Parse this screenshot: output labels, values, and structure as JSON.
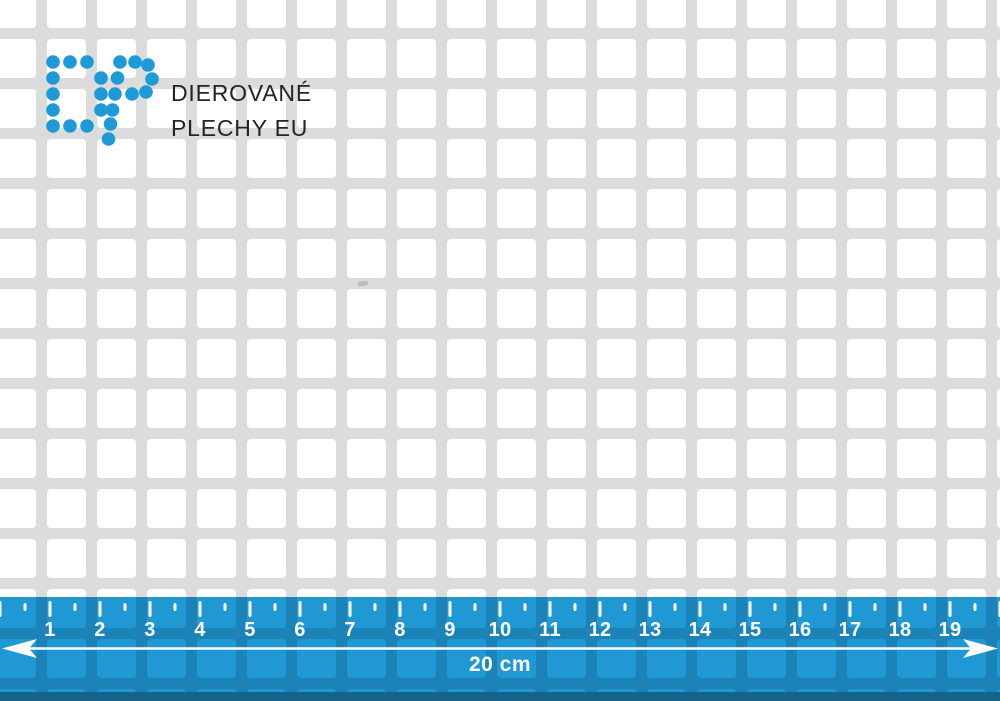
{
  "brand": {
    "logo_text": "DP",
    "name_line1": "DIEROVANÉ",
    "name_line2": "PLECHY EU"
  },
  "ruler": {
    "unit_numbers": [
      "1",
      "2",
      "3",
      "4",
      "5",
      "6",
      "7",
      "8",
      "9",
      "10",
      "11",
      "12",
      "13",
      "14",
      "15",
      "16",
      "17",
      "18",
      "19"
    ],
    "total_label": "20 cm"
  },
  "colors": {
    "brand_blue": "#1e9ad8",
    "ruler_blue": "#1f98d4",
    "sheet_gray": "#dcdcdc",
    "sheet_edge_gray": "#a6a6a6",
    "hole_white": "#ffffff",
    "text_dark": "#242424",
    "ruler_text_white": "#ffffff"
  }
}
